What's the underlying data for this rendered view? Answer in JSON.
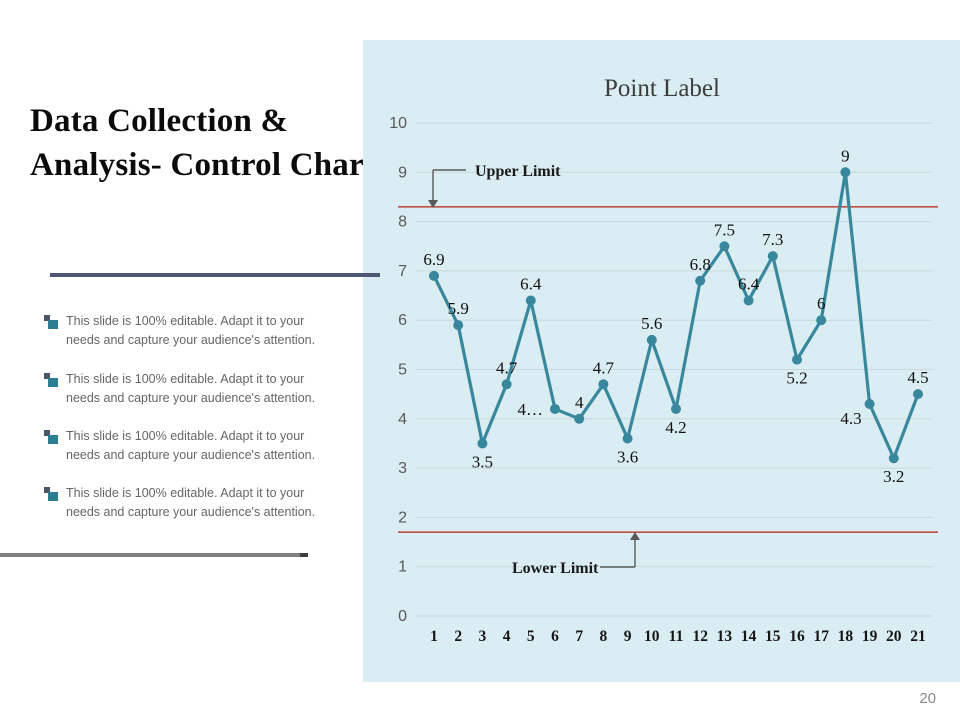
{
  "slide": {
    "title": "Data Collection & Analysis- Control Chart",
    "page_number": "20",
    "bullets": [
      {
        "text": "This slide is 100% editable. Adapt it to your needs and capture your audience's attention."
      },
      {
        "text": "This slide is 100% editable. Adapt it to your needs and capture your audience's attention."
      },
      {
        "text": "This slide is 100% editable. Adapt it to your needs and capture your audience's attention."
      },
      {
        "text": "This slide is 100% editable. Adapt it to your needs and capture your audience's attention."
      }
    ]
  },
  "chart_data": {
    "type": "line",
    "title": "Point Label",
    "categories": [
      1,
      2,
      3,
      4,
      5,
      6,
      7,
      8,
      9,
      10,
      11,
      12,
      13,
      14,
      15,
      16,
      17,
      18,
      19,
      20,
      21
    ],
    "values": [
      6.9,
      5.9,
      3.5,
      4.7,
      6.4,
      4.2,
      4,
      4.7,
      3.6,
      5.6,
      4.2,
      6.8,
      7.5,
      6.4,
      7.3,
      5.2,
      6,
      9,
      4.3,
      3.2,
      4.5
    ],
    "point_labels": [
      "6.9",
      "5.9",
      "3.5",
      "4.7",
      "6.4",
      "4…",
      "4",
      "4.7",
      "3.6",
      "5.6",
      "4.2",
      "6.8",
      "7.5",
      "6.4",
      "7.3",
      "5.2",
      "6",
      "9",
      "4.3",
      "3.2",
      "4.5"
    ],
    "label_side": [
      "above",
      "above",
      "below",
      "above",
      "above",
      "left",
      "above",
      "above",
      "below",
      "above",
      "below",
      "above",
      "above",
      "above",
      "above",
      "below",
      "above",
      "above",
      "below-left",
      "below",
      "above"
    ],
    "xlabel": "",
    "ylabel": "",
    "ylim": [
      0,
      10
    ],
    "ytick_step": 1,
    "grid": true,
    "legend": "none",
    "upper_limit": {
      "label": "Upper Limit",
      "value": 8.3
    },
    "lower_limit": {
      "label": "Lower Limit",
      "value": 1.7
    },
    "colors": {
      "series": "#38879d",
      "limit_line": "#bf5044",
      "panel_bg": "#daedf2",
      "gridline": "#c9d8da",
      "annotation": "#595959",
      "y_tick_text": "#595959",
      "x_tick_text": "#151515",
      "data_label_text": "#111111",
      "title_text": "#3d3d3d"
    }
  }
}
